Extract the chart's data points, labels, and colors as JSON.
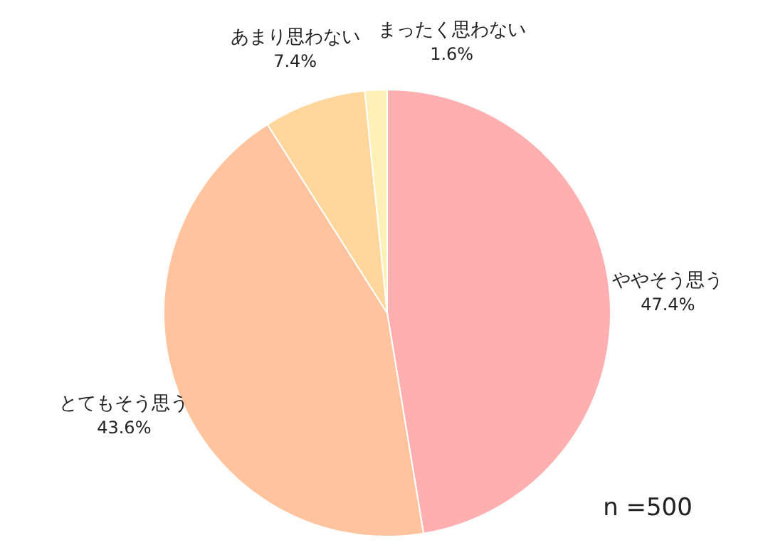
{
  "chart_data": {
    "type": "pie",
    "categories": [
      "ややそう思う",
      "とてもそう思う",
      "あまり思わない",
      "まったく思わない"
    ],
    "values": [
      47.4,
      43.6,
      7.4,
      1.6
    ],
    "value_labels": [
      "47.4%",
      "43.6%",
      "7.4%",
      "1.6%"
    ],
    "colors": [
      "#ffafaf",
      "#ffc49d",
      "#ffd79d",
      "#fff0b8"
    ],
    "annotations": [
      "n =500"
    ]
  }
}
